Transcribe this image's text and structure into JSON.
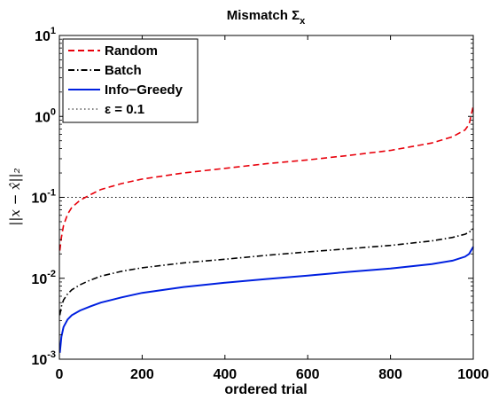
{
  "chart_data": {
    "type": "line",
    "title": "Mismatch",
    "title_symbol": "Σ",
    "title_subscript": "x",
    "xlabel": "ordered trial",
    "ylabel": "||x − x̂||₂",
    "xlim": [
      0,
      1000
    ],
    "ylim": [
      0.001,
      10
    ],
    "yscale": "log",
    "grid": false,
    "legend_position": "top-left",
    "x_ticks": [
      "0",
      "200",
      "400",
      "600",
      "800",
      "1000"
    ],
    "y_ticks": [
      {
        "base": "10",
        "exp": "-3"
      },
      {
        "base": "10",
        "exp": "-2"
      },
      {
        "base": "10",
        "exp": "-1"
      },
      {
        "base": "10",
        "exp": "0"
      },
      {
        "base": "10",
        "exp": "1"
      }
    ],
    "x": [
      1,
      5,
      10,
      20,
      30,
      50,
      75,
      100,
      150,
      200,
      300,
      400,
      500,
      600,
      700,
      800,
      900,
      950,
      980,
      990,
      1000
    ],
    "series": [
      {
        "name": "Random",
        "color": "#e8000b",
        "style": "dashed",
        "values": [
          0.022,
          0.032,
          0.045,
          0.062,
          0.075,
          0.092,
          0.108,
          0.125,
          0.148,
          0.168,
          0.2,
          0.228,
          0.26,
          0.29,
          0.33,
          0.38,
          0.47,
          0.56,
          0.68,
          0.8,
          1.35
        ]
      },
      {
        "name": "Batch",
        "color": "#000000",
        "style": "dashdot",
        "values": [
          0.0035,
          0.0045,
          0.0054,
          0.0064,
          0.0072,
          0.0083,
          0.0095,
          0.0106,
          0.0122,
          0.0135,
          0.0155,
          0.0172,
          0.0192,
          0.0212,
          0.0232,
          0.0255,
          0.029,
          0.032,
          0.035,
          0.037,
          0.041
        ]
      },
      {
        "name": "Info−Greedy",
        "color": "#0020e0",
        "style": "solid",
        "values": [
          0.0012,
          0.0019,
          0.0025,
          0.0031,
          0.0035,
          0.004,
          0.0045,
          0.005,
          0.0058,
          0.0066,
          0.0078,
          0.0088,
          0.0098,
          0.0108,
          0.012,
          0.0132,
          0.015,
          0.0165,
          0.0185,
          0.02,
          0.0245
        ]
      }
    ],
    "reference_line": {
      "name": "ε = 0.1",
      "value": 0.1,
      "color": "#000000",
      "style": "dotted"
    }
  }
}
